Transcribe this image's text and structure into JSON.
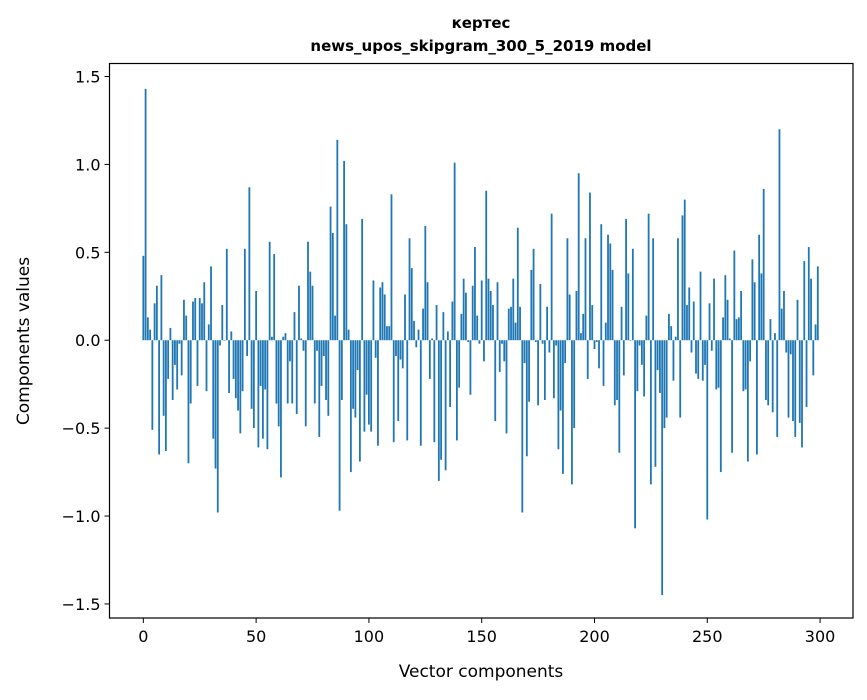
{
  "chart_data": {
    "type": "bar",
    "title": "кертес",
    "subtitle": "news_upos_skipgram_300_5_2019 model",
    "xlabel": "Vector components",
    "ylabel": "Components values",
    "xlim": [
      -15,
      314.6
    ],
    "ylim": [
      -1.58,
      1.574
    ],
    "xticks": [
      0,
      50,
      100,
      150,
      200,
      250,
      300
    ],
    "xtick_labels": [
      "0",
      "50",
      "100",
      "150",
      "200",
      "250",
      "300"
    ],
    "yticks": [
      1.5,
      1.0,
      0.5,
      0.0,
      -0.5,
      -1.0,
      -1.5
    ],
    "ytick_labels": [
      "1.5",
      "1.0",
      "0.5",
      "0.0",
      "−0.5",
      "−1.0",
      "−1.5"
    ],
    "grid": false,
    "color": "#1f77b4",
    "values": [
      0.48,
      1.43,
      0.13,
      0.06,
      -0.51,
      0.21,
      0.31,
      -0.65,
      0.37,
      -0.43,
      -0.63,
      -0.22,
      0.07,
      -0.34,
      -0.14,
      -0.28,
      -0.02,
      -0.2,
      0.23,
      0.14,
      -0.7,
      -0.36,
      0.22,
      0.24,
      -0.26,
      0.24,
      0.21,
      0.33,
      -0.29,
      0.09,
      0.42,
      -0.56,
      -0.73,
      -0.98,
      -0.03,
      0.2,
      0.0,
      0.52,
      -0.3,
      0.05,
      -0.22,
      -0.33,
      -0.4,
      -0.53,
      -0.29,
      0.52,
      -0.09,
      0.87,
      -0.39,
      -0.5,
      0.28,
      -0.61,
      -0.26,
      -0.56,
      -0.28,
      -0.62,
      0.56,
      0.02,
      0.49,
      -0.36,
      -0.49,
      -0.78,
      0.02,
      0.04,
      -0.36,
      -0.12,
      -0.36,
      0.16,
      -0.42,
      0.31,
      0.01,
      -0.06,
      -0.49,
      0.56,
      0.39,
      0.31,
      -0.36,
      -0.06,
      -0.55,
      -0.26,
      -0.09,
      -0.34,
      -0.43,
      0.76,
      0.61,
      0.14,
      1.14,
      -0.97,
      -0.34,
      1.02,
      0.66,
      0.06,
      -0.75,
      -0.39,
      -0.44,
      -0.17,
      -0.69,
      0.69,
      -0.52,
      -0.31,
      -0.48,
      -0.52,
      0.34,
      -0.1,
      -0.6,
      0.3,
      0.33,
      0.26,
      0.08,
      0.08,
      0.83,
      -0.58,
      -0.09,
      -0.46,
      -0.11,
      -0.16,
      0.26,
      -0.57,
      0.58,
      0.41,
      0.11,
      -0.04,
      0.06,
      -0.6,
      0.18,
      0.65,
      0.33,
      -0.22,
      0.01,
      -0.58,
      0.2,
      -0.8,
      -0.68,
      0.16,
      -0.74,
      0.05,
      -0.38,
      0.22,
      1.01,
      -0.57,
      -0.27,
      0.15,
      0.35,
      0.27,
      -0.01,
      -0.31,
      0.31,
      0.53,
      0.14,
      -0.02,
      0.34,
      -0.12,
      0.85,
      0.35,
      0.28,
      0.2,
      -0.46,
      0.33,
      -0.18,
      -0.02,
      -0.12,
      -0.53,
      0.18,
      0.19,
      0.35,
      0.1,
      0.64,
      0.19,
      -0.98,
      -0.13,
      -0.66,
      -0.35,
      0.4,
      0.52,
      -0.01,
      -0.37,
      0.32,
      -0.02,
      -0.34,
      0.19,
      -0.07,
      0.72,
      -0.33,
      -0.03,
      -0.62,
      -0.4,
      -0.76,
      -0.13,
      0.58,
      0.26,
      -0.82,
      -0.5,
      0.28,
      0.95,
      0.04,
      0.15,
      0.58,
      -0.22,
      0.84,
      0.2,
      -0.05,
      -0.01,
      -0.16,
      0.66,
      -0.26,
      0.1,
      0.6,
      0.55,
      0.4,
      -0.37,
      -0.34,
      -0.64,
      0.19,
      -0.2,
      0.69,
      0.38,
      0.0,
      0.52,
      -1.07,
      -0.29,
      -0.03,
      -0.14,
      -0.32,
      0.14,
      0.72,
      -0.82,
      0.58,
      -0.72,
      -0.17,
      -0.3,
      -1.45,
      -0.5,
      -0.44,
      0.15,
      0.08,
      -0.23,
      0.02,
      0.58,
      -0.44,
      0.71,
      0.8,
      0.2,
      0.3,
      -0.07,
      0.22,
      -0.19,
      -0.22,
      0.39,
      -0.23,
      -0.14,
      -1.02,
      0.21,
      -0.06,
      0.35,
      -0.28,
      -0.27,
      -0.75,
      0.13,
      0.37,
      0.23,
      0.01,
      -0.64,
      0.51,
      0.12,
      0.13,
      0.28,
      -0.29,
      -0.28,
      -0.69,
      -0.12,
      0.46,
      0.33,
      -0.65,
      0.6,
      0.38,
      0.86,
      -0.34,
      -0.37,
      0.12,
      -0.41,
      0.04,
      -0.55,
      1.2,
      0.18,
      0.28,
      -0.07,
      -0.44,
      -0.08,
      -0.46,
      -0.55,
      0.23,
      -0.47,
      -0.61,
      0.45,
      -0.38,
      0.53,
      0.35,
      -0.2,
      0.09,
      0.42
    ]
  }
}
